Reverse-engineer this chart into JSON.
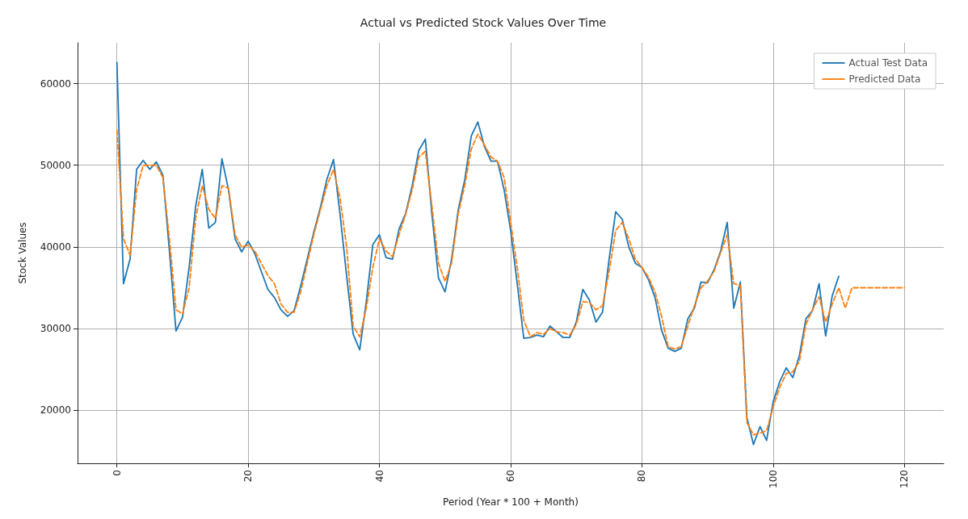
{
  "chart_data": {
    "type": "line",
    "title": "Actual vs Predicted Stock Values Over Time",
    "xlabel": "Period (Year * 100 + Month)",
    "ylabel": "Stock Values",
    "xlim": [
      -6,
      126
    ],
    "xticks": [
      0,
      20,
      40,
      60,
      80,
      100,
      120
    ],
    "ylim": [
      13500,
      65000
    ],
    "yticks": [
      20000,
      30000,
      40000,
      50000,
      60000
    ],
    "grid": true,
    "legend": "top right",
    "marker": "none",
    "series": [
      {
        "name": "Actual Test Data",
        "color": "#1f77b4",
        "line_style": "solid",
        "x": [
          0,
          1,
          2,
          3,
          4,
          5,
          6,
          7,
          8,
          9,
          10,
          11,
          12,
          13,
          14,
          15,
          16,
          17,
          18,
          19,
          20,
          21,
          22,
          23,
          24,
          25,
          26,
          27,
          28,
          29,
          30,
          31,
          32,
          33,
          34,
          35,
          36,
          37,
          38,
          39,
          40,
          41,
          42,
          43,
          44,
          45,
          46,
          47,
          48,
          49,
          50,
          51,
          52,
          53,
          54,
          55,
          56,
          57,
          58,
          59,
          60,
          61,
          62,
          63,
          64,
          65,
          66,
          67,
          68,
          69,
          70,
          71,
          72,
          73,
          74,
          75,
          76,
          77,
          78,
          79,
          80,
          81,
          82,
          83,
          84,
          85,
          86,
          87,
          88,
          89,
          90,
          91,
          92,
          93,
          94,
          95,
          96,
          97,
          98,
          99,
          100,
          101,
          102,
          103,
          104,
          105,
          106,
          107,
          108,
          109,
          110
        ],
        "values": [
          62600,
          35500,
          38500,
          49500,
          50600,
          49500,
          50400,
          48800,
          39500,
          29700,
          31400,
          37500,
          45000,
          49500,
          42300,
          43000,
          50800,
          47000,
          41000,
          39400,
          40700,
          39200,
          37000,
          34800,
          33800,
          32300,
          31500,
          32200,
          35200,
          38500,
          41800,
          44800,
          48300,
          50700,
          44000,
          36500,
          29300,
          27400,
          33300,
          40300,
          41500,
          38700,
          38500,
          42200,
          44100,
          47500,
          51800,
          53200,
          44000,
          36200,
          34500,
          38500,
          44500,
          48200,
          53600,
          55300,
          52300,
          50500,
          50500,
          47000,
          42000,
          35500,
          28800,
          28900,
          29200,
          29000,
          30300,
          29600,
          28900,
          28900,
          30800,
          34800,
          33500,
          30800,
          32000,
          38500,
          44300,
          43400,
          40000,
          38000,
          37500,
          36000,
          33800,
          29800,
          27600,
          27200,
          27600,
          31200,
          32500,
          35700,
          35600,
          37200,
          39500,
          43000,
          32500,
          35700,
          19100,
          15800,
          18000,
          16300,
          21000,
          23500,
          25200,
          24000,
          26700,
          31200,
          32200,
          35500,
          29100,
          34000,
          36400
        ]
      },
      {
        "name": "Predicted Data",
        "color": "#ff7f0e",
        "line_style": "dashed",
        "x": [
          0,
          1,
          2,
          3,
          4,
          5,
          6,
          7,
          8,
          9,
          10,
          11,
          12,
          13,
          14,
          15,
          16,
          17,
          18,
          19,
          20,
          21,
          22,
          23,
          24,
          25,
          26,
          27,
          28,
          29,
          30,
          31,
          32,
          33,
          34,
          35,
          36,
          37,
          38,
          39,
          40,
          41,
          42,
          43,
          44,
          45,
          46,
          47,
          48,
          49,
          50,
          51,
          52,
          53,
          54,
          55,
          56,
          57,
          58,
          59,
          60,
          61,
          62,
          63,
          64,
          65,
          66,
          67,
          68,
          69,
          70,
          71,
          72,
          73,
          74,
          75,
          76,
          77,
          78,
          79,
          80,
          81,
          82,
          83,
          84,
          85,
          86,
          87,
          88,
          89,
          90,
          91,
          92,
          93,
          94,
          95,
          96,
          97,
          98,
          99,
          100,
          101,
          102,
          103,
          104,
          105,
          106,
          107,
          108,
          109,
          110,
          111,
          112,
          113,
          114,
          115,
          116,
          117,
          118,
          119,
          120
        ],
        "values": [
          54300,
          41000,
          39000,
          47000,
          50000,
          50000,
          50000,
          48500,
          41000,
          32300,
          31800,
          35000,
          43500,
          47500,
          44600,
          43500,
          47500,
          47200,
          41500,
          40000,
          40200,
          39500,
          38000,
          36500,
          35500,
          33000,
          32000,
          32000,
          34500,
          38000,
          41500,
          44500,
          47500,
          49500,
          46000,
          40000,
          30300,
          29000,
          32500,
          37500,
          41000,
          39500,
          38800,
          41500,
          44000,
          47000,
          51000,
          51700,
          45000,
          38000,
          35800,
          38000,
          44000,
          47500,
          52000,
          53800,
          52500,
          51000,
          50500,
          48500,
          43000,
          37500,
          31000,
          29000,
          29500,
          29300,
          30000,
          29600,
          29500,
          29200,
          30500,
          33300,
          33200,
          32300,
          32800,
          37000,
          42000,
          43000,
          41000,
          38500,
          37500,
          36300,
          34500,
          31500,
          27800,
          27500,
          27800,
          30300,
          32800,
          35000,
          35800,
          37000,
          39300,
          41500,
          35500,
          35300,
          18500,
          17000,
          17200,
          17500,
          20400,
          22800,
          24500,
          24700,
          26000,
          30500,
          32300,
          33900,
          30800,
          33000,
          35000,
          32500,
          35000,
          35000,
          35000,
          35000,
          35000,
          35000,
          35000,
          35000,
          35000
        ]
      }
    ]
  }
}
